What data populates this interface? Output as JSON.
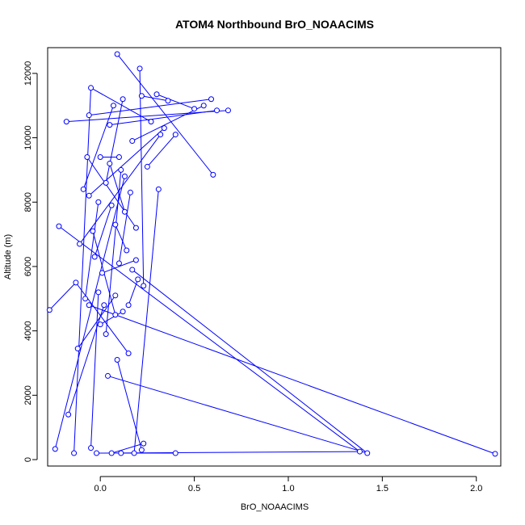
{
  "chart_data": {
    "type": "line",
    "title": "ATOM4 Northbound BrO_NOAACIMS",
    "xlabel": "BrO_NOAACIMS",
    "ylabel": "Altitude (m)",
    "xlim": [
      -0.28,
      2.13
    ],
    "ylim": [
      -200,
      12800
    ],
    "xticks": [
      "0.0",
      "0.5",
      "1.0",
      "1.5",
      "2.0"
    ],
    "xtick_values": [
      0,
      0.5,
      1.0,
      1.5,
      2.0
    ],
    "yticks": [
      "0",
      "2000",
      "4000",
      "6000",
      "8000",
      "10000",
      "12000"
    ],
    "ytick_values": [
      0,
      2000,
      4000,
      6000,
      8000,
      10000,
      12000
    ],
    "grid": false,
    "legend": "none",
    "colors": {
      "series": "#0000ff",
      "frame": "#000000",
      "background": "#ffffff"
    },
    "series": [
      {
        "marker": "open-circle",
        "points": [
          [
            -0.24,
            330
          ],
          [
            -0.22,
            7250
          ],
          [
            -0.18,
            10500
          ],
          [
            -0.17,
            1400
          ],
          [
            -0.14,
            200
          ],
          [
            -0.12,
            3450
          ],
          [
            -0.13,
            5500
          ],
          [
            -0.11,
            6700
          ],
          [
            -0.09,
            8400
          ],
          [
            -0.07,
            9400
          ],
          [
            -0.06,
            10700
          ],
          [
            -0.05,
            11550
          ],
          [
            -0.06,
            4800
          ],
          [
            -0.05,
            360
          ],
          [
            -0.02,
            200
          ],
          [
            -0.01,
            5200
          ],
          [
            0.0,
            9400
          ],
          [
            0.02,
            4800
          ],
          [
            0.03,
            8600
          ],
          [
            0.05,
            10400
          ],
          [
            0.06,
            200
          ],
          [
            0.07,
            11000
          ],
          [
            0.08,
            7300
          ],
          [
            0.09,
            12600
          ],
          [
            0.08,
            5100
          ],
          [
            0.09,
            3100
          ],
          [
            0.1,
            9400
          ],
          [
            0.11,
            200
          ],
          [
            0.12,
            11200
          ],
          [
            0.13,
            8800
          ],
          [
            0.14,
            6500
          ],
          [
            0.15,
            4800
          ],
          [
            0.15,
            3300
          ],
          [
            0.17,
            9900
          ],
          [
            0.18,
            200
          ],
          [
            0.19,
            7200
          ],
          [
            0.2,
            5600
          ],
          [
            0.21,
            12150
          ],
          [
            0.22,
            11300
          ],
          [
            0.22,
            300
          ],
          [
            0.23,
            500
          ],
          [
            0.23,
            5400
          ],
          [
            0.25,
            9100
          ],
          [
            0.27,
            10500
          ],
          [
            0.3,
            11350
          ],
          [
            0.31,
            8400
          ],
          [
            0.32,
            10100
          ],
          [
            0.34,
            10300
          ],
          [
            0.36,
            11150
          ],
          [
            0.4,
            10100
          ],
          [
            0.4,
            200
          ],
          [
            0.5,
            10900
          ],
          [
            0.55,
            11000
          ],
          [
            0.59,
            11200
          ],
          [
            0.6,
            8850
          ],
          [
            0.62,
            10850
          ],
          [
            0.68,
            10850
          ],
          [
            1.38,
            250
          ],
          [
            1.42,
            200
          ],
          [
            2.1,
            180
          ],
          [
            -0.06,
            8200
          ],
          [
            -0.03,
            6300
          ],
          [
            0.0,
            4200
          ],
          [
            0.04,
            2600
          ],
          [
            0.06,
            7900
          ],
          [
            0.1,
            6100
          ],
          [
            0.12,
            4600
          ],
          [
            0.16,
            8300
          ],
          [
            0.19,
            6200
          ],
          [
            -0.04,
            7100
          ],
          [
            0.01,
            5800
          ],
          [
            0.05,
            9200
          ],
          [
            0.08,
            4500
          ],
          [
            0.13,
            7700
          ],
          [
            -0.08,
            5000
          ],
          [
            -0.01,
            8000
          ],
          [
            0.03,
            3900
          ],
          [
            0.11,
            9000
          ],
          [
            0.17,
            5900
          ],
          [
            -0.27,
            4650
          ]
        ],
        "segments": [
          [
            0,
            29
          ],
          [
            2,
            56
          ],
          [
            3,
            17
          ],
          [
            4,
            11
          ],
          [
            5,
            24
          ],
          [
            6,
            32
          ],
          [
            7,
            46
          ],
          [
            8,
            21
          ],
          [
            9,
            35
          ],
          [
            10,
            53
          ],
          [
            11,
            43
          ],
          [
            12,
            59
          ],
          [
            13,
            15
          ],
          [
            14,
            57
          ],
          [
            16,
            26
          ],
          [
            18,
            28
          ],
          [
            19,
            55
          ],
          [
            20,
            40
          ],
          [
            22,
            30
          ],
          [
            23,
            54
          ],
          [
            25,
            39
          ],
          [
            27,
            50
          ],
          [
            31,
            36
          ],
          [
            33,
            52
          ],
          [
            34,
            45
          ],
          [
            37,
            41
          ],
          [
            38,
            48
          ],
          [
            42,
            49
          ],
          [
            44,
            51
          ],
          [
            47,
            60
          ],
          [
            58,
            63
          ],
          [
            1,
            57
          ],
          [
            61,
            64
          ],
          [
            62,
            66
          ],
          [
            65,
            67
          ],
          [
            68,
            70
          ],
          [
            69,
            72
          ],
          [
            71,
            73
          ],
          [
            74,
            75
          ],
          [
            76,
            77
          ],
          [
            78,
            58
          ],
          [
            79,
            6
          ]
        ]
      }
    ]
  }
}
